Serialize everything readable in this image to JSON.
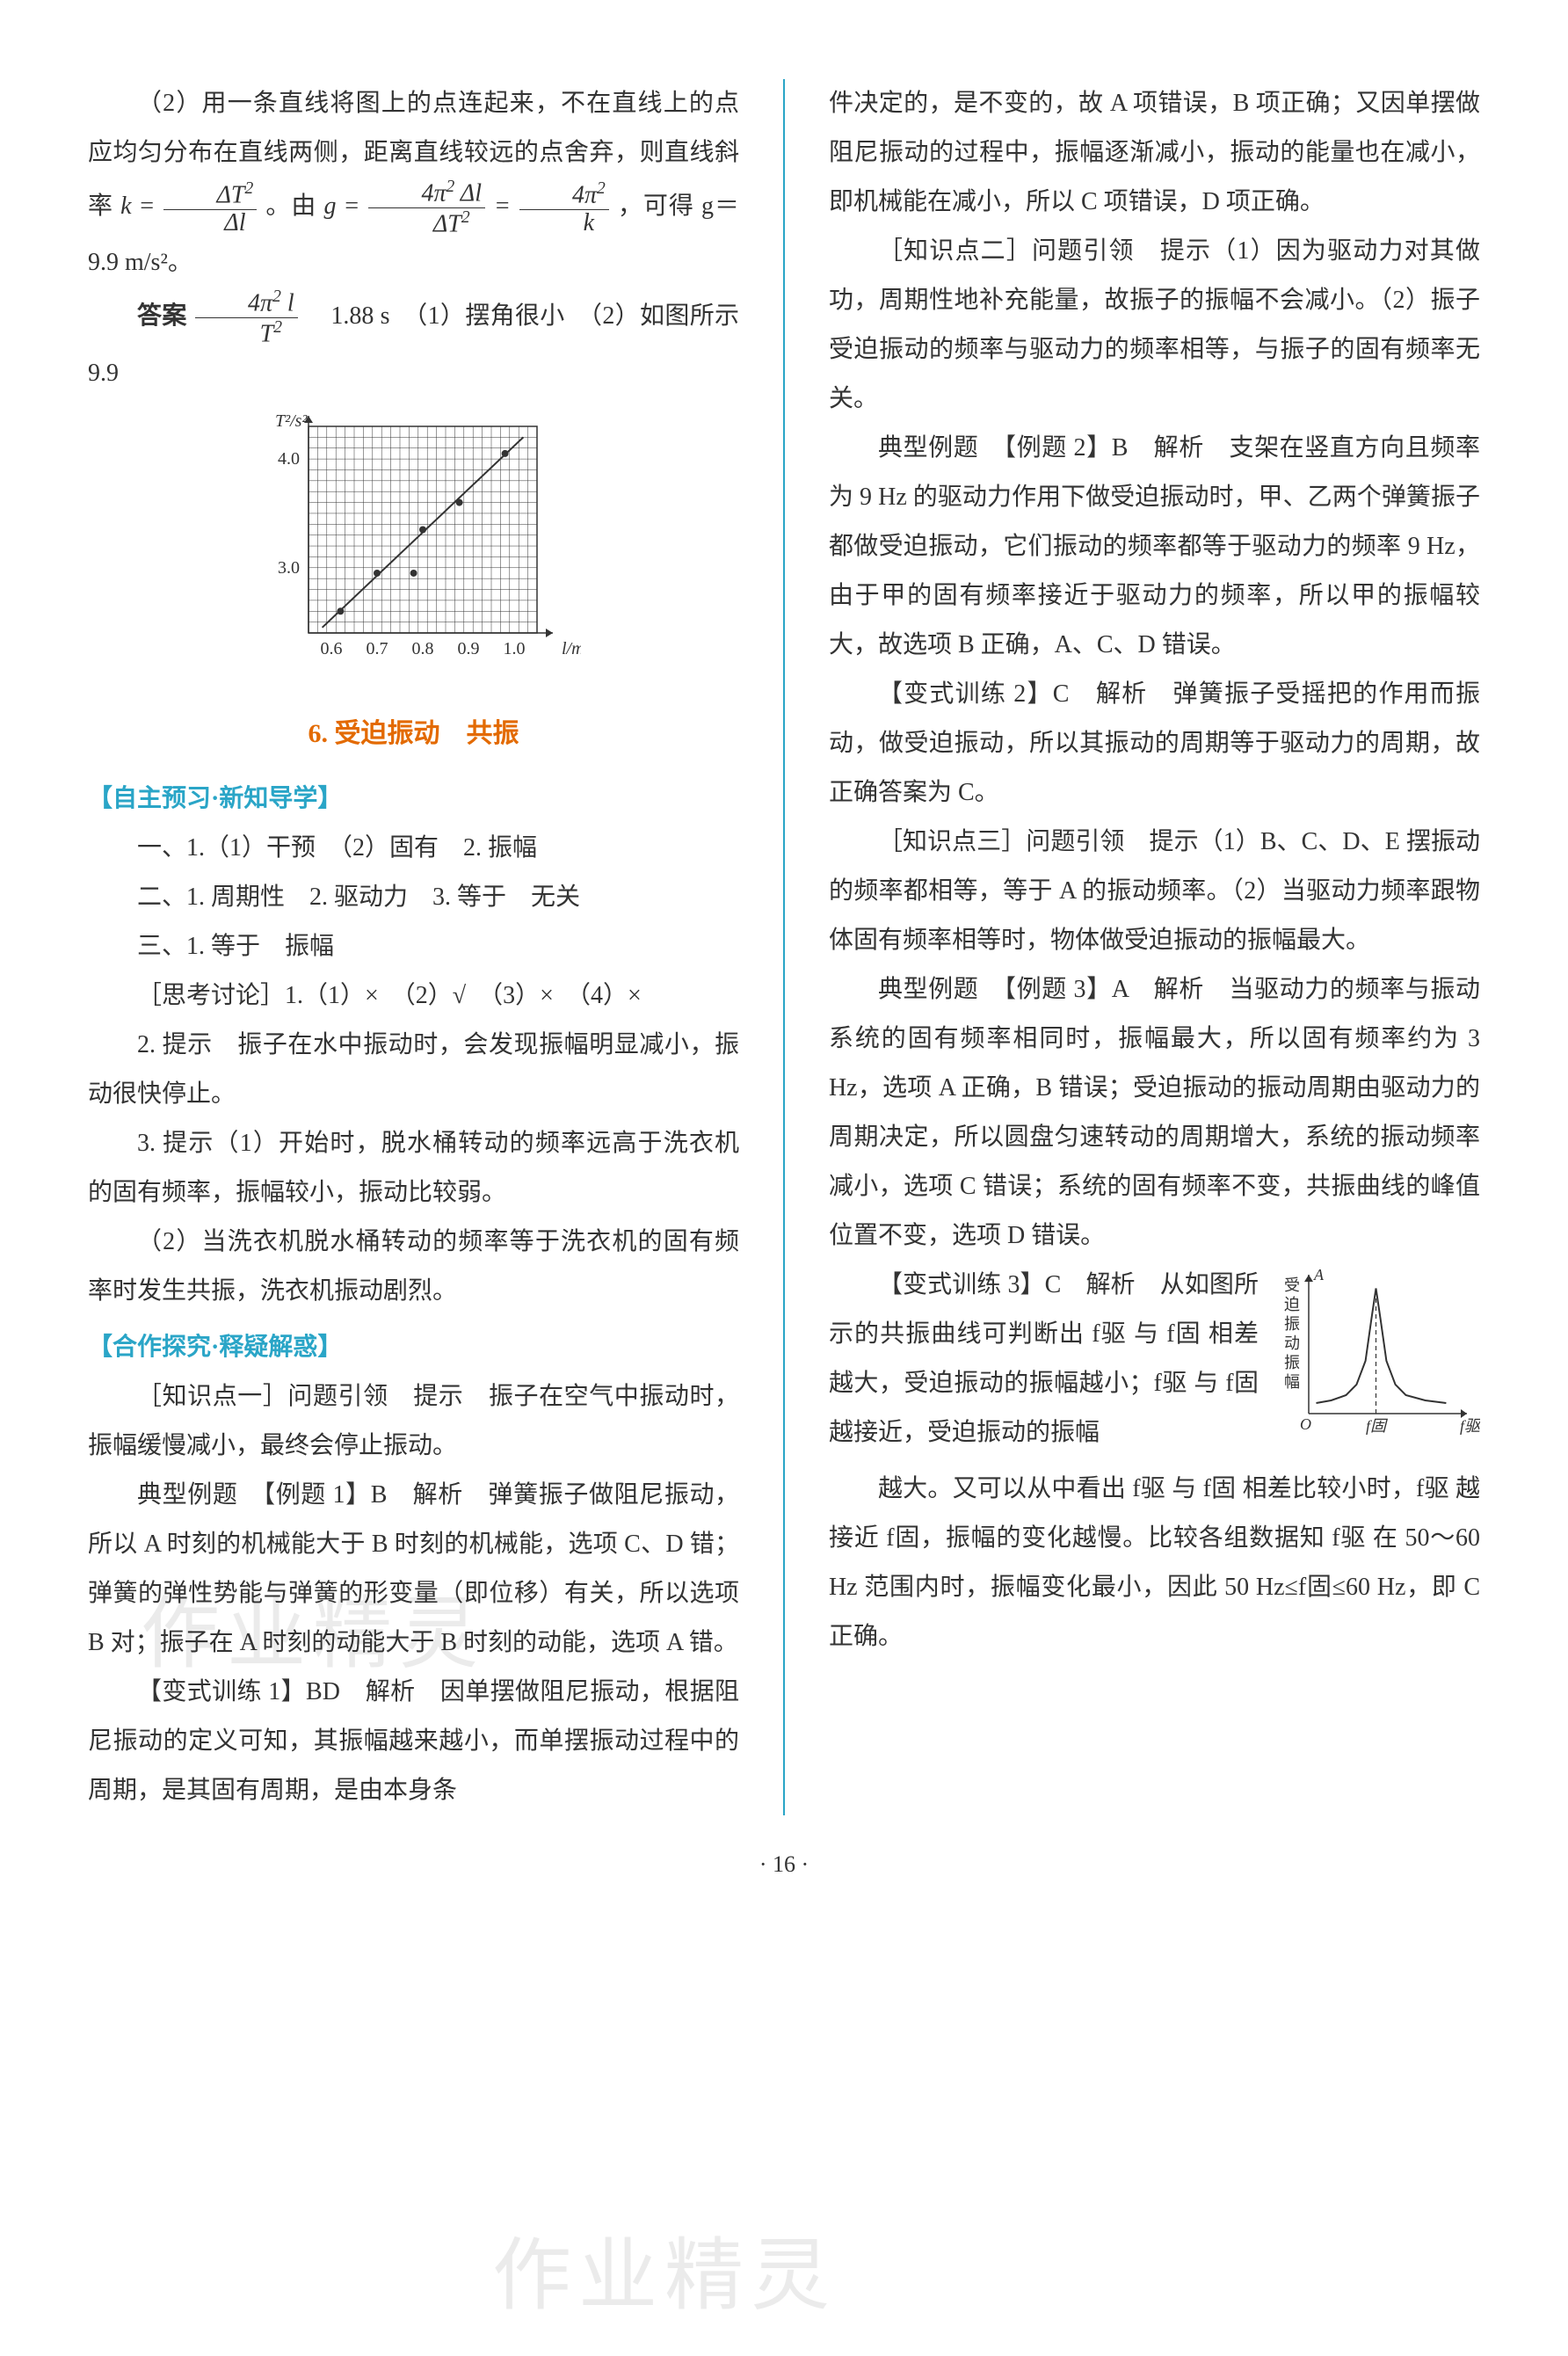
{
  "left": {
    "p1": "（2）用一条直线将图上的点连起来，不在直线上的点应均匀分布在直线两侧，距离直线较远的点舍弃，则直线斜率 ",
    "p1b": "。由 ",
    "p1c": "，可得 g＝9.9 m/s²。",
    "answer_label": "答案",
    "answer_text": "　1.88 s　（1）摆角很小　（2）如图所示　9.9",
    "chart": {
      "type": "scatter+line",
      "x_label": "l/m",
      "y_label": "T²/s²",
      "xlim": [
        0.55,
        1.05
      ],
      "ylim": [
        2.4,
        4.3
      ],
      "xticks": [
        0.6,
        0.7,
        0.8,
        0.9,
        1.0
      ],
      "yticks": [
        3.0,
        4.0
      ],
      "ytick_labels": [
        "3.0",
        "4.0"
      ],
      "grid_color": "#333333",
      "background_color": "#ffffff",
      "axis_color": "#333333",
      "line_color": "#333333",
      "marker": "circle",
      "marker_size": 4,
      "marker_color": "#333333",
      "points_x": [
        0.62,
        0.7,
        0.78,
        0.8,
        0.88,
        0.98
      ],
      "points_y": [
        2.6,
        2.95,
        2.95,
        3.35,
        3.6,
        4.05
      ],
      "fit_x": [
        0.58,
        1.02
      ],
      "fit_y": [
        2.45,
        4.2
      ],
      "label_fontsize": 20
    },
    "section_title": "6. 受迫振动　共振",
    "sub1": "【自主预习·新知导学】",
    "l1": "一、1.（1）干预　（2）固有　2. 振幅",
    "l2": "二、1. 周期性　2. 驱动力　3. 等于　无关",
    "l3": "三、1. 等于　振幅",
    "l4": "［思考讨论］1.（1）×　（2）√　（3）×　（4）×",
    "l5": "2. 提示　振子在水中振动时，会发现振幅明显减小，振动很快停止。",
    "l6": "3. 提示（1）开始时，脱水桶转动的频率远高于洗衣机的固有频率，振幅较小，振动比较弱。",
    "l7": "（2）当洗衣机脱水桶转动的频率等于洗衣机的固有频率时发生共振，洗衣机振动剧烈。",
    "sub2": "【合作探究·释疑解惑】",
    "l8": "［知识点一］问题引领　提示　振子在空气中振动时，振幅缓慢减小，最终会停止振动。",
    "l9": "典型例题　【例题 1】B　解析　弹簧振子做阻尼振动，所以 A 时刻的机械能大于 B 时刻的机械能，选项 C、D 错；弹簧的弹性势能与弹簧的形变量（即位移）有关，所以选项 B 对；振子在 A 时刻的动能大于 B 时刻的动能，选项 A 错。",
    "l10": "【变式训练 1】BD　解析　因单摆做阻尼振动，根据阻尼振动的定义可知，其振幅越来越小，而单摆振动过程中的周期，是其固有周期，是由本身条"
  },
  "right": {
    "r1": "件决定的，是不变的，故 A 项错误，B 项正确；又因单摆做阻尼振动的过程中，振幅逐渐减小，振动的能量也在减小，即机械能在减小，所以 C 项错误，D 项正确。",
    "r2": "［知识点二］问题引领　提示（1）因为驱动力对其做功，周期性地补充能量，故振子的振幅不会减小。（2）振子受迫振动的频率与驱动力的频率相等，与振子的固有频率无关。",
    "r3": "典型例题　【例题 2】B　解析　支架在竖直方向且频率为 9 Hz 的驱动力作用下做受迫振动时，甲、乙两个弹簧振子都做受迫振动，它们振动的频率都等于驱动力的频率 9 Hz，由于甲的固有频率接近于驱动力的频率，所以甲的振幅较大，故选项 B 正确，A、C、D 错误。",
    "r4": "【变式训练 2】C　解析　弹簧振子受摇把的作用而振动，做受迫振动，所以其振动的周期等于驱动力的周期，故正确答案为 C。",
    "r5": "［知识点三］问题引领　提示（1）B、C、D、E 摆振动的频率都相等，等于 A 的振动频率。（2）当驱动力频率跟物体固有频率相等时，物体做受迫振动的振幅最大。",
    "r6": "典型例题　【例题 3】A　解析　当驱动力的频率与振动系统的固有频率相同时，振幅最大，所以固有频率约为 3 Hz，选项 A 正确，B 错误；受迫振动的振动周期由驱动力的周期决定，所以圆盘匀速转动的周期增大，系统的振动频率减小，选项 C 错误；系统的固有频率不变，共振曲线的峰值位置不变，选项 D 错误。",
    "r7a": "【变式训练 3】C　解析　从如图所示的共振曲线可判断出 f驱 与 f固 相差越大，受迫振动的振幅越小；f驱 与 f固 越接近，受迫振动的振幅",
    "r7b": "越大。又可以从中看出 f驱 与 f固 相差比较小时，f驱 越接近 f固，振幅的变化越慢。比较各组数据知 f驱 在 50～60 Hz 范围内时，振幅变化最小，因此 50 Hz≤f固≤60 Hz，即 C 正确。",
    "resonance": {
      "type": "line",
      "x_label": "f驱",
      "y_label": "A",
      "y_side_label": "受迫振动振幅",
      "axis_color": "#333333",
      "line_color": "#333333",
      "dash_color": "#333333",
      "background_color": "#ffffff",
      "peak_x": 0.45,
      "peak_label": "f固",
      "curve_x": [
        0.05,
        0.15,
        0.25,
        0.32,
        0.38,
        0.42,
        0.45,
        0.48,
        0.52,
        0.58,
        0.65,
        0.78,
        0.92
      ],
      "curve_y": [
        0.08,
        0.1,
        0.14,
        0.22,
        0.4,
        0.72,
        0.95,
        0.72,
        0.4,
        0.22,
        0.14,
        0.1,
        0.08
      ],
      "label_fontsize": 18
    }
  },
  "page_number": "· 16 ·",
  "watermark_text": "作业精灵"
}
